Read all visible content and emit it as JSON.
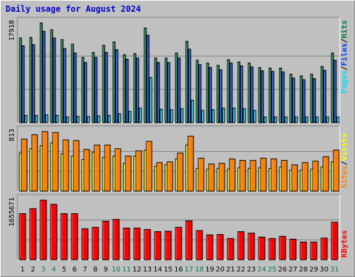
{
  "title": "Daily usage for August 2024",
  "colors": {
    "background": "#c0c0c0",
    "plot_background": "#c0c0c0",
    "gridline": "#7f7f7f",
    "hits": "#008040",
    "files": "#0040ff",
    "pages": "#00e0ff",
    "visits": "#ffff00",
    "sites": "#ff8000",
    "kbytes": "#ff0000",
    "weekend_day": "#00804a",
    "weekday": "#000000",
    "title": "#0000cc"
  },
  "chart_data": [
    {
      "type": "bar",
      "panel": "hits-files-pages",
      "max_label": "17918",
      "ylim": [
        0,
        17918
      ],
      "legend": [
        "Pages",
        "Files",
        "Hits"
      ],
      "legend_placement": "right, vertical",
      "grid": true,
      "categories": [
        "1",
        "2",
        "3",
        "4",
        "5",
        "6",
        "7",
        "8",
        "9",
        "10",
        "11",
        "12",
        "13",
        "14",
        "15",
        "16",
        "17",
        "18",
        "19",
        "20",
        "21",
        "22",
        "23",
        "24",
        "25",
        "26",
        "27",
        "28",
        "29",
        "30",
        "31"
      ],
      "series": [
        {
          "name": "Hits",
          "values": [
            15200,
            15300,
            17918,
            16700,
            14900,
            14100,
            11700,
            12600,
            13900,
            14500,
            12200,
            12400,
            17000,
            11600,
            11600,
            12500,
            14600,
            11200,
            10700,
            10300,
            11300,
            10900,
            10700,
            9900,
            9800,
            9800,
            8700,
            8400,
            8700,
            10100,
            12500
          ]
        },
        {
          "name": "Files",
          "values": [
            13800,
            14000,
            16400,
            15200,
            13300,
            12500,
            10800,
            11700,
            12600,
            13100,
            11400,
            11600,
            15700,
            10800,
            10800,
            11600,
            13200,
            10400,
            9900,
            9500,
            10700,
            10200,
            10000,
            9300,
            9200,
            9100,
            8000,
            7700,
            7900,
            9400,
            11200
          ]
        },
        {
          "name": "Pages",
          "values": [
            1300,
            1300,
            1400,
            1300,
            1000,
            1100,
            1100,
            1200,
            1300,
            1600,
            2000,
            2600,
            8100,
            2400,
            2300,
            2500,
            4000,
            2200,
            2300,
            2600,
            2600,
            2500,
            2200,
            1000,
            1000,
            1000,
            1000,
            1000,
            1000,
            1000,
            1000
          ]
        }
      ]
    },
    {
      "type": "bar",
      "panel": "visits-sites",
      "max_label": "813",
      "ylim": [
        0,
        813
      ],
      "legend": [
        "Sites",
        "Visits"
      ],
      "legend_placement": "right, vertical",
      "grid": true,
      "categories": [
        "1",
        "2",
        "3",
        "4",
        "5",
        "6",
        "7",
        "8",
        "9",
        "10",
        "11",
        "12",
        "13",
        "14",
        "15",
        "16",
        "17",
        "18",
        "19",
        "20",
        "21",
        "22",
        "23",
        "24",
        "25",
        "26",
        "27",
        "28",
        "29",
        "30",
        "31"
      ],
      "series": [
        {
          "name": "Visits",
          "values": [
            520,
            580,
            620,
            660,
            510,
            480,
            430,
            530,
            460,
            480,
            380,
            480,
            560,
            340,
            360,
            440,
            630,
            310,
            300,
            310,
            300,
            320,
            310,
            320,
            310,
            330,
            290,
            290,
            300,
            330,
            400
          ]
        },
        {
          "name": "Sites",
          "values": [
            710,
            770,
            813,
            800,
            700,
            690,
            570,
            630,
            630,
            580,
            480,
            550,
            680,
            390,
            400,
            520,
            750,
            450,
            370,
            380,
            440,
            420,
            420,
            450,
            440,
            420,
            360,
            390,
            410,
            470,
            560
          ]
        }
      ]
    },
    {
      "type": "bar",
      "panel": "kbytes",
      "max_label": "1655671",
      "ylim": [
        0,
        1655671
      ],
      "legend": [
        "KBytes"
      ],
      "legend_placement": "right, vertical",
      "grid": true,
      "categories": [
        "1",
        "2",
        "3",
        "4",
        "5",
        "6",
        "7",
        "8",
        "9",
        "10",
        "11",
        "12",
        "13",
        "14",
        "15",
        "16",
        "17",
        "18",
        "19",
        "20",
        "21",
        "22",
        "23",
        "24",
        "25",
        "26",
        "27",
        "28",
        "29",
        "30",
        "31"
      ],
      "series": [
        {
          "name": "KBytes",
          "values": [
            1280000,
            1420000,
            1655671,
            1540000,
            1280000,
            1280000,
            860000,
            900000,
            1070000,
            1120000,
            880000,
            880000,
            840000,
            780000,
            790000,
            900000,
            1080000,
            810000,
            690000,
            700000,
            590000,
            780000,
            740000,
            630000,
            590000,
            650000,
            570000,
            490000,
            490000,
            600000,
            1040000
          ]
        }
      ]
    }
  ]
}
